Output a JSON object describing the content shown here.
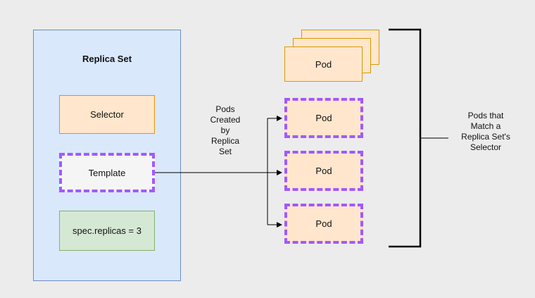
{
  "replica_set": {
    "title": "Replica Set",
    "selector_label": "Selector",
    "template_label": "Template",
    "replicas_label": "spec.replicas = 3"
  },
  "pods": {
    "stacked_label": "Pod",
    "created": [
      "Pod",
      "Pod",
      "Pod"
    ]
  },
  "labels": {
    "created_by": [
      "Pods",
      "Created",
      "by",
      "Replica",
      "Set"
    ],
    "matching": [
      "Pods that",
      "Match a",
      "Replica Set's",
      "Selector"
    ]
  },
  "colors": {
    "container_fill": "#dae8fc",
    "container_border": "#6c8ebf",
    "orange_fill": "#ffe6cc",
    "orange_border": "#d79b00",
    "green_fill": "#d5e8d4",
    "dashed_border": "#a259ff"
  }
}
